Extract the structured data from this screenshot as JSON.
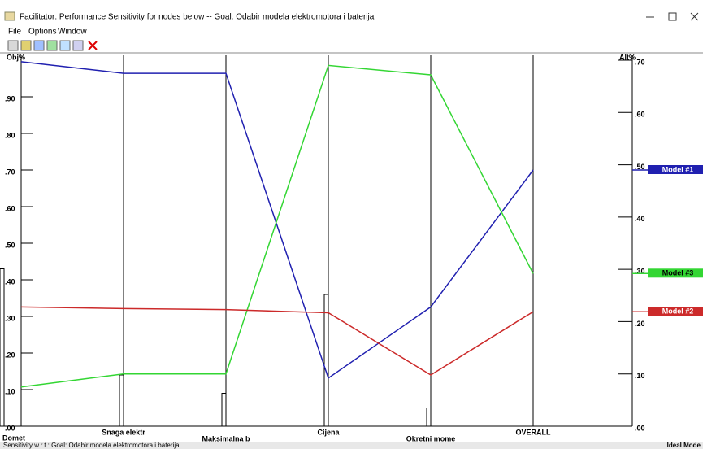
{
  "window": {
    "title": "Facilitator: Performance Sensitivity for nodes below -- Goal: Odabir modela elektromotora i baterija",
    "menu": [
      "File",
      "Options",
      "Window"
    ],
    "status_left": "Sensitivity w.r.t.: Goal: Odabir modela elektromotora i baterija",
    "status_right": "Ideal Mode"
  },
  "chart_data": {
    "type": "line",
    "ylabel": "Obj%",
    "y2label": "Alt%",
    "categories": [
      "Domet",
      "Snaga elektr",
      "Maksimalna b",
      "Cijena",
      "Okretni mome",
      "OVERALL"
    ],
    "bars": {
      "axis": "y",
      "color": "#ffffff",
      "values": [
        0.43,
        0.14,
        0.09,
        0.36,
        0.05,
        null
      ]
    },
    "series": [
      {
        "name": "Model #1",
        "color": "#2020b0",
        "axis": "y2",
        "values": [
          0.697,
          0.675,
          0.675,
          0.092,
          0.228,
          0.49
        ]
      },
      {
        "name": "Model #3",
        "color": "#33d633",
        "axis": "y2",
        "values": [
          0.075,
          0.1,
          0.1,
          0.69,
          0.672,
          0.292
        ]
      },
      {
        "name": "Model #2",
        "color": "#cc2a2a",
        "axis": "y2",
        "values": [
          0.228,
          0.225,
          0.223,
          0.217,
          0.098,
          0.219
        ]
      }
    ],
    "ylim": [
      0,
      1.0
    ],
    "yticks": [
      {
        "value": 0,
        "label": ".00"
      },
      {
        "value": 0.1,
        "label": ".10"
      },
      {
        "value": 0.2,
        "label": ".20"
      },
      {
        "value": 0.3,
        "label": ".30"
      },
      {
        "value": 0.4,
        "label": ".40"
      },
      {
        "value": 0.5,
        "label": ".50"
      },
      {
        "value": 0.6,
        "label": ".60"
      },
      {
        "value": 0.7,
        "label": ".70"
      },
      {
        "value": 0.8,
        "label": ".80"
      },
      {
        "value": 0.9,
        "label": ".90"
      }
    ],
    "y2lim": [
      0,
      0.7
    ],
    "y2ticks": [
      {
        "value": 0,
        "label": ".00"
      },
      {
        "value": 0.1,
        "label": ".10"
      },
      {
        "value": 0.2,
        "label": ".20"
      },
      {
        "value": 0.3,
        "label": ".30"
      },
      {
        "value": 0.4,
        "label": ".40"
      },
      {
        "value": 0.5,
        "label": ".50"
      },
      {
        "value": 0.6,
        "label": ".60"
      },
      {
        "value": 0.7,
        "label": ".70"
      }
    ]
  }
}
